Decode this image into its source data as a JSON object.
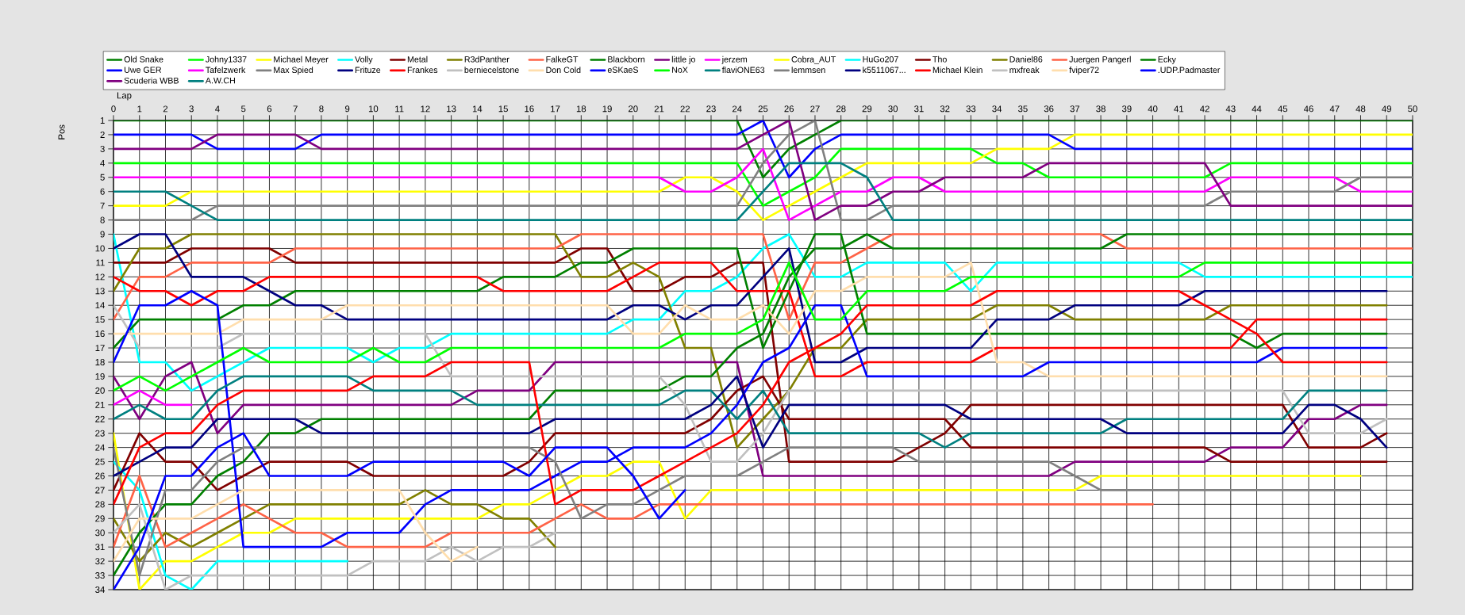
{
  "chart_data": {
    "type": "line",
    "xlabel": "Lap",
    "ylabel": "Pos",
    "grid": true,
    "legend": "top",
    "xlim": [
      0,
      50
    ],
    "ylim": [
      34,
      1
    ],
    "xticks": [
      0,
      1,
      2,
      3,
      4,
      5,
      6,
      7,
      8,
      9,
      10,
      11,
      12,
      13,
      14,
      15,
      16,
      17,
      18,
      19,
      20,
      21,
      22,
      23,
      24,
      25,
      26,
      27,
      28,
      29,
      30,
      31,
      32,
      33,
      34,
      35,
      36,
      37,
      38,
      39,
      40,
      41,
      42,
      43,
      44,
      45,
      46,
      47,
      48,
      49,
      50
    ],
    "yticks": [
      1,
      2,
      3,
      4,
      5,
      6,
      7,
      8,
      9,
      10,
      11,
      12,
      13,
      14,
      15,
      16,
      17,
      18,
      19,
      20,
      21,
      22,
      23,
      24,
      25,
      26,
      27,
      28,
      29,
      30,
      31,
      32,
      33,
      34
    ],
    "x": [
      0,
      1,
      2,
      3,
      4,
      5,
      6,
      7,
      8,
      9,
      10,
      11,
      12,
      13,
      14,
      15,
      16,
      17,
      18,
      19,
      20,
      21,
      22,
      23,
      24,
      25,
      26,
      27,
      28,
      29,
      30,
      31,
      32,
      33,
      34,
      35,
      36,
      37,
      38,
      39,
      40,
      41,
      42,
      43,
      44,
      45,
      46,
      47,
      48,
      49,
      50
    ],
    "series": [
      {
        "name": "Old Snake",
        "color": "#008000",
        "values": [
          1,
          1,
          1,
          1,
          1,
          1,
          1,
          1,
          1,
          1,
          1,
          1,
          1,
          1,
          1,
          1,
          1,
          1,
          1,
          1,
          1,
          1,
          1,
          1,
          1,
          5,
          3,
          2,
          1,
          1,
          1,
          1,
          1,
          1,
          1,
          1,
          1,
          1,
          1,
          1,
          1,
          1,
          1,
          1,
          1,
          1,
          1,
          1,
          1,
          1,
          1
        ]
      },
      {
        "name": "Johny1337",
        "color": "#00ff00",
        "values": [
          4,
          4,
          4,
          4,
          4,
          4,
          4,
          4,
          4,
          4,
          4,
          4,
          4,
          4,
          4,
          4,
          4,
          4,
          4,
          4,
          4,
          4,
          4,
          4,
          4,
          7,
          6,
          5,
          3,
          3,
          3,
          3,
          3,
          3,
          4,
          4,
          5,
          5,
          5,
          5,
          5,
          5,
          5,
          4,
          4,
          4,
          4,
          4,
          4,
          4,
          4
        ]
      },
      {
        "name": "Michael Meyer",
        "color": "#ffff00",
        "values": [
          7,
          7,
          7,
          6,
          6,
          6,
          6,
          6,
          6,
          6,
          6,
          6,
          6,
          6,
          6,
          6,
          6,
          6,
          6,
          6,
          6,
          6,
          5,
          5,
          6,
          8,
          7,
          6,
          5,
          4,
          4,
          4,
          4,
          4,
          3,
          3,
          3,
          2,
          2,
          2,
          2,
          2,
          2,
          2,
          2,
          2,
          2,
          2,
          2,
          2,
          2
        ]
      },
      {
        "name": "Volly",
        "color": "#00ffff",
        "values": [
          9,
          18,
          18,
          20,
          19,
          18,
          17,
          17,
          17,
          17,
          18,
          17,
          17,
          16,
          16,
          16,
          16,
          16,
          16,
          16,
          15,
          15,
          13,
          13,
          12,
          10,
          9,
          12,
          12,
          11,
          11,
          11,
          11,
          13,
          11,
          11,
          11,
          11,
          11,
          11,
          11,
          11,
          12,
          12,
          12,
          12,
          12,
          12,
          12,
          12,
          12
        ]
      },
      {
        "name": "Metal",
        "color": "#800000",
        "values": [
          11,
          11,
          11,
          10,
          10,
          10,
          10,
          11,
          11,
          11,
          11,
          11,
          11,
          11,
          11,
          11,
          11,
          11,
          10,
          10,
          13,
          13,
          12,
          12,
          11,
          11,
          25,
          25,
          25,
          25,
          25,
          24,
          23,
          21,
          21,
          21,
          21,
          21,
          21,
          21,
          21,
          21,
          21,
          21,
          21,
          21,
          24,
          24,
          24,
          23,
          null
        ]
      },
      {
        "name": "R3dPanther",
        "color": "#808000",
        "values": [
          13,
          10,
          10,
          9,
          9,
          9,
          9,
          9,
          9,
          9,
          9,
          9,
          9,
          9,
          9,
          9,
          9,
          9,
          12,
          12,
          11,
          12,
          17,
          17,
          24,
          22,
          20,
          17,
          17,
          15,
          15,
          15,
          15,
          15,
          14,
          14,
          14,
          15,
          15,
          15,
          15,
          15,
          15,
          14,
          14,
          14,
          14,
          14,
          14,
          14,
          null
        ]
      },
      {
        "name": "FalkeGT",
        "color": "#ff6347",
        "values": [
          15,
          12,
          12,
          11,
          11,
          11,
          11,
          10,
          10,
          10,
          10,
          10,
          10,
          10,
          10,
          10,
          10,
          10,
          9,
          9,
          9,
          9,
          9,
          9,
          9,
          9,
          15,
          11,
          11,
          10,
          9,
          9,
          9,
          9,
          9,
          9,
          9,
          9,
          9,
          10,
          10,
          10,
          10,
          10,
          10,
          10,
          10,
          10,
          10,
          10,
          10
        ]
      },
      {
        "name": "Blackborn",
        "color": "#008000",
        "values": [
          17,
          15,
          15,
          15,
          15,
          14,
          14,
          13,
          13,
          13,
          13,
          13,
          13,
          13,
          13,
          12,
          12,
          12,
          11,
          11,
          10,
          10,
          10,
          10,
          10,
          17,
          13,
          9,
          9,
          16,
          16,
          16,
          16,
          16,
          16,
          16,
          16,
          16,
          16,
          16,
          16,
          16,
          16,
          16,
          17,
          16,
          16,
          16,
          16,
          16,
          null
        ]
      },
      {
        "name": "little jo",
        "color": "#800080",
        "values": [
          19,
          22,
          19,
          18,
          23,
          21,
          21,
          21,
          21,
          21,
          21,
          21,
          21,
          21,
          20,
          20,
          20,
          18,
          18,
          18,
          18,
          18,
          18,
          18,
          18,
          26,
          26,
          26,
          26,
          26,
          26,
          26,
          26,
          26,
          26,
          26,
          26,
          25,
          25,
          25,
          25,
          25,
          25,
          24,
          24,
          24,
          22,
          22,
          21,
          21,
          null
        ]
      },
      {
        "name": "jerzem",
        "color": "#ff00ff",
        "values": [
          21,
          20,
          21,
          21,
          null,
          null,
          null,
          null,
          null,
          null,
          null,
          null,
          null,
          null,
          null,
          null,
          null,
          null,
          null,
          null,
          null,
          null,
          null,
          null,
          null,
          null,
          null,
          null,
          null,
          null,
          null,
          null,
          null,
          null,
          null,
          null,
          null,
          null,
          null,
          null,
          null,
          null,
          null,
          null,
          null,
          null,
          null,
          null,
          null,
          null,
          null
        ]
      },
      {
        "name": "Cobra_AUT",
        "color": "#ffff00",
        "values": [
          23,
          34,
          32,
          32,
          31,
          30,
          30,
          29,
          29,
          29,
          29,
          29,
          29,
          29,
          29,
          28,
          28,
          27,
          26,
          26,
          25,
          25,
          29,
          27,
          27,
          27,
          27,
          27,
          27,
          27,
          27,
          27,
          27,
          27,
          27,
          27,
          27,
          27,
          26,
          26,
          26,
          26,
          26,
          26,
          26,
          26,
          26,
          26,
          26,
          null,
          null
        ]
      },
      {
        "name": "HuGo207",
        "color": "#00ffff",
        "values": [
          25,
          27,
          33,
          34,
          32,
          32,
          32,
          32,
          32,
          32,
          null,
          null,
          null,
          null,
          null,
          null,
          null,
          null,
          null,
          null,
          null,
          null,
          null,
          null,
          null,
          null,
          null,
          null,
          null,
          null,
          null,
          null,
          null,
          null,
          null,
          null,
          null,
          null,
          null,
          null,
          null,
          null,
          null,
          null,
          null,
          null,
          null,
          null,
          null,
          null,
          null
        ]
      },
      {
        "name": "Tho",
        "color": "#800000",
        "values": [
          27,
          23,
          25,
          25,
          27,
          26,
          25,
          25,
          25,
          25,
          26,
          26,
          26,
          26,
          26,
          26,
          25,
          23,
          23,
          23,
          23,
          23,
          23,
          22,
          20,
          19,
          22,
          22,
          22,
          22,
          22,
          22,
          22,
          24,
          24,
          24,
          24,
          24,
          24,
          24,
          24,
          24,
          24,
          25,
          25,
          25,
          25,
          25,
          25,
          25,
          null
        ]
      },
      {
        "name": "Daniel86",
        "color": "#808000",
        "values": [
          29,
          32,
          30,
          31,
          30,
          29,
          28,
          28,
          28,
          28,
          28,
          28,
          27,
          28,
          28,
          29,
          29,
          31,
          null,
          null,
          null,
          null,
          null,
          null,
          null,
          null,
          null,
          null,
          null,
          null,
          null,
          null,
          null,
          null,
          null,
          null,
          null,
          null,
          null,
          null,
          null,
          null,
          null,
          null,
          null,
          null,
          null,
          null,
          null,
          null,
          null
        ]
      },
      {
        "name": "Juergen Pangerl",
        "color": "#ff6347",
        "values": [
          31,
          26,
          31,
          30,
          29,
          28,
          29,
          30,
          30,
          31,
          31,
          31,
          31,
          30,
          30,
          30,
          30,
          29,
          28,
          29,
          29,
          28,
          28,
          28,
          28,
          28,
          28,
          28,
          28,
          28,
          28,
          28,
          28,
          28,
          28,
          28,
          28,
          28,
          28,
          28,
          28,
          null,
          null,
          null,
          null,
          null,
          null,
          null,
          null,
          null,
          null
        ]
      },
      {
        "name": "Ecky",
        "color": "#008000",
        "values": [
          33,
          30,
          28,
          28,
          26,
          25,
          23,
          23,
          22,
          22,
          22,
          22,
          22,
          22,
          22,
          22,
          22,
          20,
          20,
          20,
          20,
          20,
          19,
          19,
          17,
          16,
          12,
          10,
          10,
          9,
          10,
          10,
          10,
          10,
          10,
          10,
          10,
          10,
          10,
          9,
          9,
          9,
          9,
          9,
          9,
          9,
          9,
          9,
          9,
          9,
          9
        ]
      },
      {
        "name": "Uwe GER",
        "color": "#0000ff",
        "values": [
          2,
          2,
          2,
          2,
          3,
          3,
          3,
          3,
          2,
          2,
          2,
          2,
          2,
          2,
          2,
          2,
          2,
          2,
          2,
          2,
          2,
          2,
          2,
          2,
          2,
          1,
          5,
          3,
          2,
          2,
          2,
          2,
          2,
          2,
          2,
          2,
          2,
          3,
          3,
          3,
          3,
          3,
          3,
          3,
          3,
          3,
          3,
          3,
          3,
          3,
          3
        ]
      },
      {
        "name": "Tafelzwerk",
        "color": "#ff00ff",
        "values": [
          5,
          5,
          5,
          5,
          5,
          5,
          5,
          5,
          5,
          5,
          5,
          5,
          5,
          5,
          5,
          5,
          5,
          5,
          5,
          5,
          5,
          5,
          6,
          6,
          5,
          3,
          8,
          7,
          6,
          6,
          5,
          5,
          6,
          6,
          6,
          6,
          6,
          6,
          6,
          6,
          6,
          6,
          6,
          5,
          5,
          5,
          5,
          5,
          6,
          6,
          6
        ]
      },
      {
        "name": "Max Spied",
        "color": "#808080",
        "values": [
          8,
          8,
          8,
          8,
          7,
          7,
          7,
          7,
          7,
          7,
          7,
          7,
          7,
          7,
          7,
          7,
          7,
          7,
          7,
          7,
          7,
          7,
          7,
          7,
          7,
          4,
          2,
          1,
          8,
          8,
          7,
          7,
          7,
          7,
          7,
          7,
          7,
          7,
          7,
          7,
          7,
          7,
          7,
          6,
          6,
          6,
          6,
          6,
          5,
          5,
          5
        ]
      },
      {
        "name": "Frituze",
        "color": "#000080",
        "values": [
          10,
          9,
          9,
          12,
          12,
          12,
          13,
          14,
          14,
          15,
          15,
          15,
          15,
          15,
          15,
          15,
          15,
          15,
          15,
          15,
          14,
          14,
          15,
          14,
          14,
          12,
          10,
          18,
          18,
          17,
          17,
          17,
          17,
          17,
          15,
          15,
          15,
          14,
          14,
          14,
          14,
          14,
          13,
          13,
          13,
          13,
          13,
          13,
          13,
          13,
          null
        ]
      },
      {
        "name": "Frankes",
        "color": "#ff0000",
        "values": [
          12,
          13,
          13,
          14,
          13,
          13,
          12,
          12,
          12,
          12,
          12,
          12,
          12,
          12,
          12,
          13,
          13,
          13,
          13,
          13,
          12,
          11,
          11,
          11,
          13,
          13,
          13,
          19,
          19,
          18,
          18,
          18,
          18,
          18,
          17,
          17,
          17,
          17,
          17,
          17,
          17,
          17,
          17,
          17,
          15,
          15,
          15,
          15,
          15,
          15,
          null
        ]
      },
      {
        "name": "berniecelstone",
        "color": "#c0c0c0",
        "values": [
          14,
          17,
          17,
          17,
          17,
          16,
          16,
          16,
          16,
          16,
          16,
          16,
          16,
          19,
          19,
          19,
          19,
          19,
          19,
          19,
          19,
          19,
          21,
          25,
          25,
          23,
          20,
          20,
          20,
          20,
          20,
          20,
          20,
          20,
          20,
          20,
          20,
          20,
          20,
          20,
          20,
          20,
          20,
          20,
          20,
          20,
          23,
          23,
          23,
          22,
          null
        ]
      },
      {
        "name": "Don Cold",
        "color": "#ffdead",
        "values": [
          16,
          16,
          16,
          16,
          16,
          15,
          15,
          15,
          15,
          14,
          14,
          14,
          14,
          14,
          14,
          14,
          14,
          14,
          14,
          14,
          16,
          16,
          14,
          15,
          15,
          14,
          16,
          13,
          13,
          12,
          12,
          12,
          12,
          11,
          18,
          18,
          19,
          19,
          19,
          19,
          19,
          19,
          19,
          19,
          19,
          19,
          19,
          19,
          19,
          19,
          null
        ]
      },
      {
        "name": "eSKaeS",
        "color": "#0000ff",
        "values": [
          18,
          14,
          14,
          13,
          14,
          31,
          31,
          31,
          31,
          30,
          30,
          30,
          28,
          27,
          27,
          27,
          27,
          26,
          25,
          25,
          24,
          24,
          24,
          23,
          21,
          18,
          17,
          14,
          14,
          19,
          19,
          19,
          19,
          19,
          19,
          19,
          18,
          18,
          18,
          18,
          18,
          18,
          18,
          18,
          18,
          17,
          17,
          17,
          17,
          17,
          null
        ]
      },
      {
        "name": "NoX",
        "color": "#00ff00",
        "values": [
          20,
          19,
          20,
          19,
          18,
          17,
          18,
          18,
          18,
          18,
          17,
          18,
          18,
          17,
          17,
          17,
          17,
          17,
          17,
          17,
          17,
          17,
          16,
          16,
          16,
          15,
          11,
          15,
          15,
          13,
          13,
          13,
          13,
          12,
          12,
          12,
          12,
          12,
          12,
          12,
          12,
          12,
          11,
          11,
          11,
          11,
          11,
          11,
          11,
          11,
          11
        ]
      },
      {
        "name": "flaviONE63",
        "color": "#008080",
        "values": [
          22,
          21,
          22,
          22,
          20,
          19,
          19,
          19,
          19,
          19,
          20,
          20,
          20,
          20,
          21,
          21,
          21,
          21,
          21,
          21,
          21,
          21,
          20,
          20,
          22,
          20,
          23,
          23,
          23,
          23,
          23,
          23,
          24,
          23,
          23,
          23,
          23,
          23,
          23,
          22,
          22,
          22,
          22,
          22,
          22,
          22,
          20,
          20,
          20,
          20,
          null
        ]
      },
      {
        "name": "lemmsen",
        "color": "#808080",
        "values": [
          24,
          33,
          27,
          27,
          25,
          24,
          24,
          24,
          24,
          24,
          24,
          24,
          24,
          24,
          24,
          24,
          24,
          25,
          29,
          28,
          28,
          27,
          26,
          26,
          26,
          25,
          24,
          24,
          24,
          24,
          24,
          25,
          25,
          25,
          25,
          25,
          25,
          26,
          27,
          27,
          27,
          27,
          27,
          27,
          27,
          27,
          27,
          27,
          27,
          null,
          null
        ]
      },
      {
        "name": "k5511067...",
        "color": "#000080",
        "values": [
          26,
          25,
          24,
          24,
          22,
          22,
          22,
          22,
          23,
          23,
          23,
          23,
          23,
          23,
          23,
          23,
          23,
          22,
          22,
          22,
          22,
          22,
          22,
          21,
          19,
          24,
          21,
          21,
          21,
          21,
          21,
          21,
          21,
          22,
          22,
          22,
          22,
          22,
          22,
          23,
          23,
          23,
          23,
          23,
          23,
          23,
          21,
          21,
          22,
          24,
          null
        ]
      },
      {
        "name": "Michael Klein",
        "color": "#ff0000",
        "values": [
          28,
          24,
          23,
          23,
          21,
          20,
          20,
          20,
          20,
          20,
          19,
          19,
          19,
          18,
          18,
          18,
          18,
          28,
          27,
          27,
          27,
          26,
          25,
          24,
          23,
          21,
          18,
          17,
          16,
          14,
          14,
          14,
          14,
          14,
          13,
          13,
          13,
          13,
          13,
          13,
          13,
          13,
          14,
          15,
          16,
          18,
          18,
          18,
          18,
          18,
          null
        ]
      },
      {
        "name": "mxfreak",
        "color": "#c0c0c0",
        "values": [
          30,
          28,
          34,
          33,
          33,
          33,
          33,
          33,
          33,
          33,
          32,
          32,
          32,
          31,
          32,
          31,
          31,
          30,
          null,
          null,
          null,
          null,
          null,
          null,
          null,
          null,
          null,
          null,
          null,
          null,
          null,
          null,
          null,
          null,
          null,
          null,
          null,
          null,
          null,
          null,
          null,
          null,
          null,
          null,
          null,
          null,
          null,
          null,
          null,
          null,
          null
        ]
      },
      {
        "name": "fviper72",
        "color": "#ffdead",
        "values": [
          32,
          29,
          29,
          29,
          28,
          27,
          27,
          27,
          27,
          27,
          27,
          27,
          30,
          32,
          31,
          null,
          null,
          null,
          null,
          null,
          null,
          null,
          null,
          null,
          null,
          null,
          null,
          null,
          null,
          null,
          null,
          null,
          null,
          null,
          null,
          null,
          null,
          null,
          null,
          null,
          null,
          null,
          null,
          null,
          null,
          null,
          null,
          null,
          null,
          null,
          null
        ]
      },
      {
        "name": ".UDP.Padmaster",
        "color": "#0000ff",
        "values": [
          34,
          31,
          26,
          26,
          24,
          23,
          26,
          26,
          26,
          26,
          25,
          25,
          25,
          25,
          25,
          25,
          26,
          24,
          24,
          24,
          26,
          29,
          27,
          null,
          null,
          null,
          null,
          null,
          null,
          null,
          null,
          null,
          null,
          null,
          null,
          null,
          null,
          null,
          null,
          null,
          null,
          null,
          null,
          null,
          null,
          null,
          null,
          null,
          null,
          null,
          null
        ]
      },
      {
        "name": "Scuderia WBB",
        "color": "#800080",
        "values": [
          3,
          3,
          3,
          3,
          2,
          2,
          2,
          2,
          3,
          3,
          3,
          3,
          3,
          3,
          3,
          3,
          3,
          3,
          3,
          3,
          3,
          3,
          3,
          3,
          3,
          2,
          1,
          8,
          7,
          7,
          6,
          6,
          5,
          5,
          5,
          5,
          4,
          4,
          4,
          4,
          4,
          4,
          4,
          7,
          7,
          7,
          7,
          7,
          7,
          7,
          7
        ]
      },
      {
        "name": "A.W.CH",
        "color": "#008080",
        "values": [
          6,
          6,
          6,
          7,
          8,
          8,
          8,
          8,
          8,
          8,
          8,
          8,
          8,
          8,
          8,
          8,
          8,
          8,
          8,
          8,
          8,
          8,
          8,
          8,
          8,
          6,
          4,
          4,
          4,
          5,
          8,
          8,
          8,
          8,
          8,
          8,
          8,
          8,
          8,
          8,
          8,
          8,
          8,
          8,
          8,
          8,
          8,
          8,
          8,
          8,
          8
        ]
      }
    ]
  }
}
